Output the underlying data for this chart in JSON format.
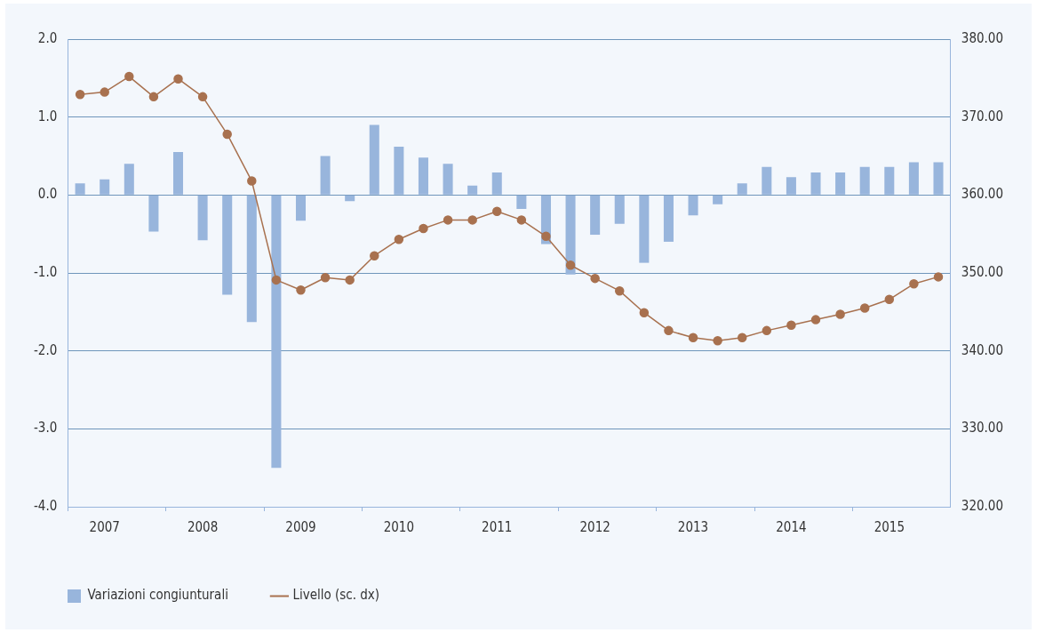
{
  "chart_data": {
    "type": "bar",
    "categories": [
      null,
      "2007",
      null,
      null,
      null,
      "2008",
      null,
      null,
      null,
      "2009",
      null,
      null,
      null,
      "2010",
      null,
      null,
      null,
      "2011",
      null,
      null,
      null,
      "2012",
      null,
      null,
      null,
      "2013",
      null,
      null,
      null,
      "2014",
      null,
      null,
      null,
      "2015",
      null,
      null
    ],
    "series": [
      {
        "name": "Variazioni congiunturali",
        "color": "#98b5dc",
        "values": [
          0.15,
          0.2,
          0.4,
          -0.47,
          0.55,
          -0.58,
          -1.28,
          -1.63,
          -3.5,
          -0.33,
          0.5,
          -0.08,
          0.9,
          0.62,
          0.48,
          0.4,
          0.12,
          0.29,
          -0.18,
          -0.63,
          -1.02,
          -0.51,
          -0.37,
          -0.87,
          -0.6,
          -0.26,
          -0.12,
          0.15,
          0.36,
          0.23,
          0.29,
          0.29,
          0.36,
          0.36,
          0.42,
          0.42
        ]
      },
      {
        "name": "Livello (sc. dx)",
        "type": "line",
        "axis": "y2",
        "color": "#a8714f",
        "values": [
          372.9,
          373.2,
          375.2,
          372.6,
          374.9,
          372.6,
          367.8,
          361.8,
          349.1,
          347.8,
          349.4,
          349.1,
          352.2,
          354.3,
          355.7,
          356.8,
          356.8,
          357.9,
          356.8,
          354.7,
          351.0,
          349.3,
          347.7,
          344.9,
          342.6,
          341.7,
          341.3,
          341.7,
          342.6,
          343.3,
          344.0,
          344.7,
          345.5,
          346.6,
          348.6,
          349.5
        ]
      }
    ],
    "ylim": [
      -4,
      2
    ],
    "yticks": [
      {
        "value": 2,
        "label": "2.0"
      },
      {
        "value": 1,
        "label": "1.0"
      },
      {
        "value": 0,
        "label": "0.0"
      },
      {
        "value": -1,
        "label": "-1.0"
      },
      {
        "value": -2,
        "label": "-2.0"
      },
      {
        "value": -3,
        "label": "-3.0"
      },
      {
        "value": -4,
        "label": "-4.0"
      }
    ],
    "y2lim": [
      320,
      380
    ],
    "y2ticks": [
      {
        "value": 380,
        "label": "380.00"
      },
      {
        "value": 370,
        "label": "370.00"
      },
      {
        "value": 360,
        "label": "360.00"
      },
      {
        "value": 350,
        "label": "350.00"
      },
      {
        "value": 340,
        "label": "340.00"
      },
      {
        "value": 330,
        "label": "330.00"
      },
      {
        "value": 320,
        "label": "320.00"
      }
    ],
    "grid": "y",
    "legend": "bottom left",
    "marker": "circle",
    "line_style": "solid"
  }
}
